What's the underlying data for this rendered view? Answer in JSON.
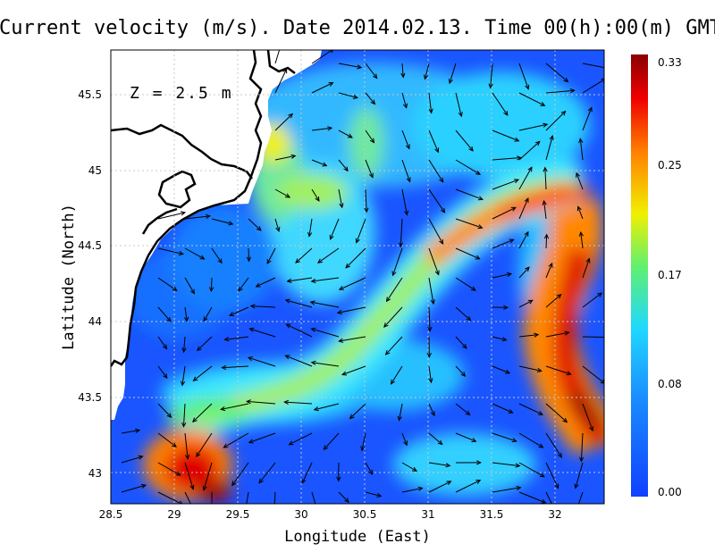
{
  "title": "Current velocity (m/s). Date 2014.02.13. Time 00(h):00(m) GMT",
  "depth_label": "Z = 2.5 m",
  "chart_data": {
    "type": "heatmap",
    "xlabel": "Longitude (East)",
    "ylabel": "Latitude (North)",
    "xlim": [
      28.5,
      32.4
    ],
    "ylim": [
      42.8,
      45.8
    ],
    "xticks": [
      "28.5",
      "29",
      "29.5",
      "30",
      "30.5",
      "31",
      "31.5",
      "32"
    ],
    "yticks": [
      "43",
      "43.5",
      "44",
      "44.5",
      "45",
      "45.5"
    ],
    "grid": "dotted",
    "colorbar": {
      "labels": [
        "0.33",
        "0.25",
        "0.17",
        "0.08",
        "0.00"
      ],
      "min": 0.0,
      "max": 0.33
    },
    "colors": {
      "low": "#1040ff",
      "mid_low": "#20d8ff",
      "mid": "#f0f000",
      "mid_high": "#ff4a00",
      "high": "#8a0000"
    }
  }
}
